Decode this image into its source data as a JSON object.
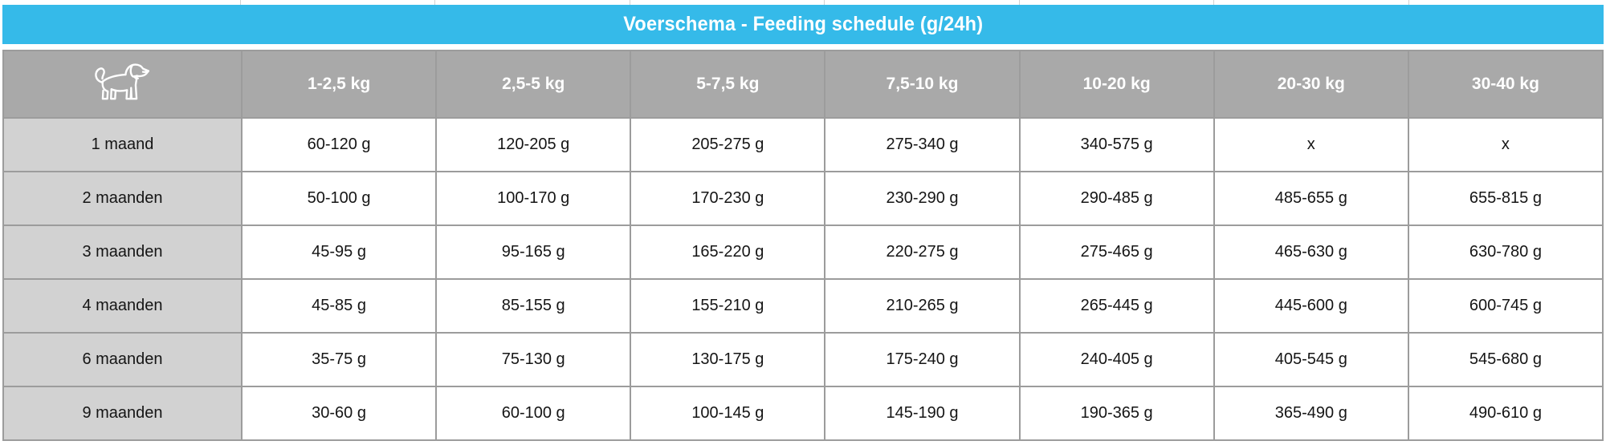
{
  "chart_data": {
    "type": "table",
    "title": "Voerschema - Feeding schedule (g/24h)",
    "unit": "g/24h",
    "row_header_meaning": "puppy age",
    "column_header_meaning": "adult weight class",
    "columns": [
      "1-2,5 kg",
      "2,5-5 kg",
      "5-7,5 kg",
      "7,5-10 kg",
      "10-20 kg",
      "20-30 kg",
      "30-40 kg"
    ],
    "rows": [
      {
        "label": "1 maand",
        "values": [
          "60-120 g",
          "120-205 g",
          "205-275 g",
          "275-340 g",
          "340-575 g",
          "x",
          "x"
        ]
      },
      {
        "label": "2 maanden",
        "values": [
          "50-100 g",
          "100-170 g",
          "170-230 g",
          "230-290 g",
          "290-485 g",
          "485-655 g",
          "655-815 g"
        ]
      },
      {
        "label": "3 maanden",
        "values": [
          "45-95 g",
          "95-165 g",
          "165-220 g",
          "220-275 g",
          "275-465 g",
          "465-630 g",
          "630-780 g"
        ]
      },
      {
        "label": "4 maanden",
        "values": [
          "45-85 g",
          "85-155 g",
          "155-210 g",
          "210-265 g",
          "265-445 g",
          "445-600 g",
          "600-745 g"
        ]
      },
      {
        "label": "6 maanden",
        "values": [
          "35-75 g",
          "75-130 g",
          "130-175 g",
          "175-240 g",
          "240-405 g",
          "405-545 g",
          "545-680 g"
        ]
      },
      {
        "label": "9 maanden",
        "values": [
          "30-60 g",
          "60-100 g",
          "100-145 g",
          "145-190 g",
          "190-365 g",
          "365-490 g",
          "490-610 g"
        ]
      }
    ]
  },
  "icons": {
    "corner": "dog-icon"
  },
  "colors": {
    "accent_cyan": "#35BAE9",
    "header_gray": "#A9A9A9",
    "row_label_gray": "#D2D2D2",
    "border_gray": "#9C9C9C",
    "title_text": "#FFFFFF",
    "cell_text": "#151515",
    "background": "#FFFFFF"
  }
}
